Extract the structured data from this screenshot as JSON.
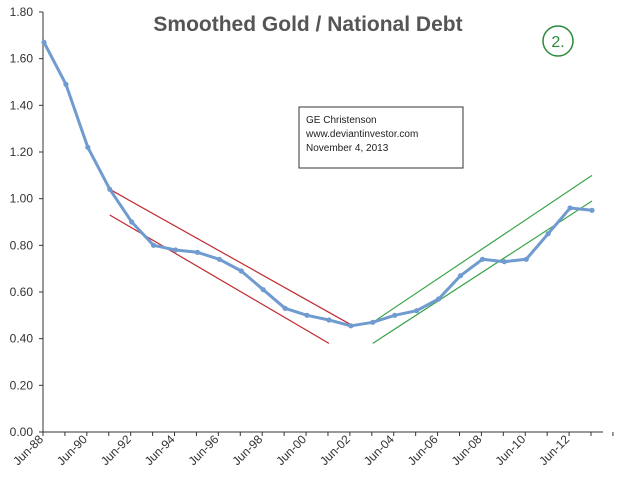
{
  "chart_data": {
    "type": "line",
    "title": "Smoothed Gold / National Debt",
    "xlabel": "",
    "ylabel": "",
    "ylim": [
      0,
      1.8
    ],
    "yticks": [
      "0.00",
      "0.20",
      "0.40",
      "0.60",
      "0.80",
      "1.00",
      "1.20",
      "1.40",
      "1.60",
      "1.80"
    ],
    "xticks": [
      "Jun-88",
      "Jun-90",
      "Jun-92",
      "Jun-94",
      "Jun-96",
      "Jun-98",
      "Jun-00",
      "Jun-02",
      "Jun-04",
      "Jun-06",
      "Jun-08",
      "Jun-10",
      "Jun-12"
    ],
    "x": [
      "Jun-88",
      "Jun-89",
      "Jun-90",
      "Jun-91",
      "Jun-92",
      "Jun-93",
      "Jun-94",
      "Jun-95",
      "Jun-96",
      "Jun-97",
      "Jun-98",
      "Jun-99",
      "Jun-00",
      "Jun-01",
      "Jun-02",
      "Jun-03",
      "Jun-04",
      "Jun-05",
      "Jun-06",
      "Jun-07",
      "Jun-08",
      "Jun-09",
      "Jun-10",
      "Jun-11",
      "Jun-12",
      "Jun-13"
    ],
    "series": [
      {
        "color": "#6f9bd0",
        "values": [
          1.67,
          1.49,
          1.22,
          1.04,
          0.9,
          0.8,
          0.78,
          0.77,
          0.74,
          0.69,
          0.61,
          0.53,
          0.5,
          0.48,
          0.455,
          0.47,
          0.5,
          0.52,
          0.57,
          0.67,
          0.74,
          0.73,
          0.74,
          0.85,
          0.96,
          0.95
        ]
      }
    ],
    "trend_lines": [
      {
        "color": "#c0282d",
        "from": [
          "Jun-91",
          1.04
        ],
        "to": [
          "Jun-02",
          0.46
        ]
      },
      {
        "color": "#c0282d",
        "from": [
          "Jun-91",
          0.93
        ],
        "to": [
          "Jun-01",
          0.38
        ]
      },
      {
        "color": "#3aa34a",
        "from": [
          "Jun-03",
          0.47
        ],
        "to": [
          "Jun-13",
          1.1
        ]
      },
      {
        "color": "#3aa34a",
        "from": [
          "Jun-03",
          0.38
        ],
        "to": [
          "Jun-13",
          0.99
        ]
      }
    ],
    "grid": false,
    "annotation": {
      "lines": [
        "GE Christenson",
        "www.deviantinvestor.com",
        "November 4, 2013"
      ]
    },
    "badge": "2."
  }
}
